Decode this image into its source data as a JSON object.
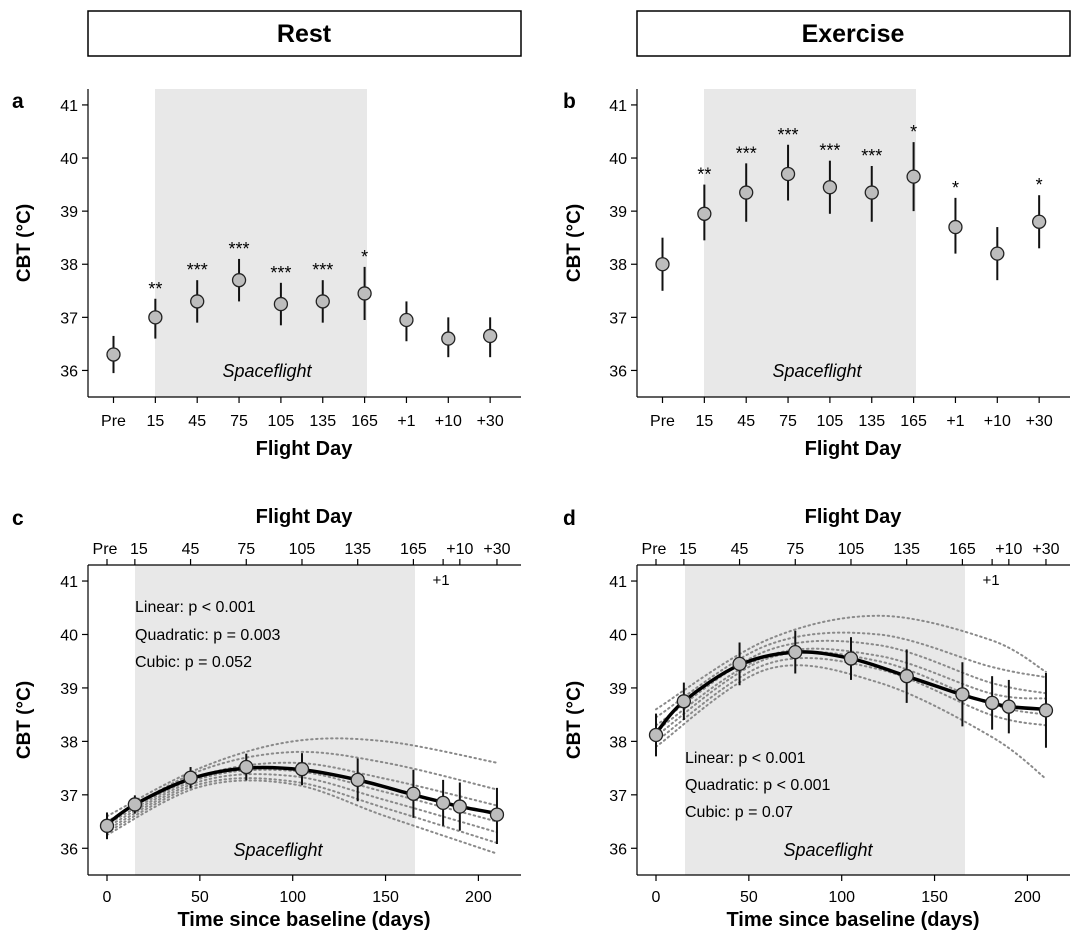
{
  "headers": {
    "rest": "Rest",
    "exercise": "Exercise"
  },
  "panel_labels": {
    "a": "a",
    "b": "b",
    "c": "c",
    "d": "d"
  },
  "shared": {
    "ylabel": "CBT (°C)",
    "xlabel_top": "Flight Day",
    "xlabel_time": "Time since baseline (days)",
    "shade_label": "Spaceflight",
    "day_labels": [
      "Pre",
      "15",
      "45",
      "75",
      "105",
      "135",
      "165",
      "+1",
      "+10",
      "+30"
    ],
    "top_axis_labels": [
      "Pre",
      "15",
      "45",
      "75",
      "105",
      "135",
      "165",
      "+10",
      "+30"
    ],
    "plus1_label": "+1"
  },
  "chart_data": [
    {
      "panel": "a",
      "type": "scatter",
      "title": "Rest",
      "xlabel": "Flight Day",
      "ylabel": "CBT (°C)",
      "categories": [
        "Pre",
        "15",
        "45",
        "75",
        "105",
        "135",
        "165",
        "+1",
        "+10",
        "+30"
      ],
      "means": [
        36.3,
        37.0,
        37.3,
        37.7,
        37.25,
        37.3,
        37.45,
        36.95,
        36.6,
        36.65
      ],
      "lower": [
        35.95,
        36.6,
        36.9,
        37.3,
        36.85,
        36.9,
        36.95,
        36.55,
        36.25,
        36.25
      ],
      "upper": [
        36.65,
        37.35,
        37.7,
        38.1,
        37.65,
        37.7,
        37.95,
        37.3,
        37.0,
        37.0
      ],
      "significance": [
        "",
        "**",
        "***",
        "***",
        "***",
        "***",
        "*",
        "",
        "",
        ""
      ],
      "ylim": [
        35.5,
        41.3
      ],
      "yticks": [
        36,
        37,
        38,
        39,
        40,
        41
      ],
      "shaded_span": [
        "15",
        "165"
      ],
      "shaded_label": "Spaceflight"
    },
    {
      "panel": "b",
      "type": "scatter",
      "title": "Exercise",
      "xlabel": "Flight Day",
      "ylabel": "CBT (°C)",
      "categories": [
        "Pre",
        "15",
        "45",
        "75",
        "105",
        "135",
        "165",
        "+1",
        "+10",
        "+30"
      ],
      "means": [
        38.0,
        38.95,
        39.35,
        39.7,
        39.45,
        39.35,
        39.65,
        38.7,
        38.2,
        38.8
      ],
      "lower": [
        37.5,
        38.45,
        38.8,
        39.2,
        38.95,
        38.8,
        39.0,
        38.2,
        37.7,
        38.3
      ],
      "upper": [
        38.5,
        39.5,
        39.9,
        40.25,
        39.95,
        39.85,
        40.3,
        39.25,
        38.7,
        39.3
      ],
      "significance": [
        "",
        "**",
        "***",
        "***",
        "***",
        "***",
        "*",
        "*",
        "",
        "*"
      ],
      "ylim": [
        35.5,
        41.3
      ],
      "yticks": [
        36,
        37,
        38,
        39,
        40,
        41
      ],
      "shaded_span": [
        "15",
        "165"
      ],
      "shaded_label": "Spaceflight"
    },
    {
      "panel": "c",
      "type": "line",
      "title": "Flight Day",
      "xlabel": "Time since baseline (days)",
      "ylabel": "CBT (°C)",
      "x": [
        0,
        15,
        45,
        75,
        105,
        135,
        165,
        181,
        190,
        210
      ],
      "means": [
        36.42,
        36.82,
        37.32,
        37.52,
        37.48,
        37.28,
        37.02,
        36.85,
        36.78,
        36.63
      ],
      "lower": [
        36.17,
        36.65,
        37.12,
        37.27,
        37.18,
        36.88,
        36.57,
        36.42,
        36.33,
        36.08
      ],
      "upper": [
        36.67,
        36.99,
        37.52,
        37.77,
        37.78,
        37.68,
        37.47,
        37.28,
        37.23,
        37.13
      ],
      "fit": {
        "x": [
          0,
          15,
          45,
          75,
          105,
          135,
          165,
          181,
          190,
          210
        ],
        "y": [
          36.45,
          36.82,
          37.3,
          37.5,
          37.47,
          37.28,
          37.0,
          36.86,
          36.78,
          36.65
        ]
      },
      "individual_curves": [
        {
          "x": [
            0,
            50,
            100,
            150,
            210
          ],
          "y": [
            36.6,
            37.5,
            38.0,
            38.0,
            37.6
          ]
        },
        {
          "x": [
            0,
            50,
            100,
            150,
            210
          ],
          "y": [
            36.5,
            37.45,
            37.8,
            37.6,
            37.1
          ]
        },
        {
          "x": [
            0,
            50,
            100,
            150,
            210
          ],
          "y": [
            36.45,
            37.35,
            37.6,
            37.3,
            36.8
          ]
        },
        {
          "x": [
            0,
            50,
            100,
            150,
            210
          ],
          "y": [
            36.4,
            37.3,
            37.45,
            37.05,
            36.5
          ]
        },
        {
          "x": [
            0,
            50,
            100,
            150,
            210
          ],
          "y": [
            36.35,
            37.25,
            37.35,
            36.9,
            36.3
          ]
        },
        {
          "x": [
            0,
            50,
            100,
            150,
            210
          ],
          "y": [
            36.3,
            37.2,
            37.25,
            36.75,
            36.1
          ]
        },
        {
          "x": [
            0,
            50,
            100,
            150,
            210
          ],
          "y": [
            36.25,
            37.15,
            37.2,
            36.6,
            35.9
          ]
        }
      ],
      "annotations": [
        "Linear: p < 0.001",
        "Quadratic: p = 0.003",
        "Cubic: p = 0.052"
      ],
      "xlim": [
        -7,
        222
      ],
      "xticks": [
        0,
        50,
        100,
        150,
        200
      ],
      "ylim": [
        35.5,
        41.3
      ],
      "yticks": [
        36,
        37,
        38,
        39,
        40,
        41
      ],
      "top_axis": {
        "positions": [
          0,
          15,
          45,
          75,
          105,
          135,
          165,
          181,
          190,
          210
        ],
        "labels": [
          "Pre",
          "15",
          "45",
          "75",
          "105",
          "135",
          "165",
          "+1",
          "+10",
          "+30"
        ]
      },
      "shaded_range": [
        15,
        165
      ],
      "shaded_label": "Spaceflight"
    },
    {
      "panel": "d",
      "type": "line",
      "title": "Flight Day",
      "xlabel": "Time since baseline (days)",
      "ylabel": "CBT (°C)",
      "x": [
        0,
        15,
        45,
        75,
        105,
        135,
        165,
        181,
        190,
        210
      ],
      "means": [
        38.12,
        38.75,
        39.45,
        39.67,
        39.55,
        39.22,
        38.88,
        38.72,
        38.65,
        38.58
      ],
      "lower": [
        37.72,
        38.4,
        39.05,
        39.27,
        39.15,
        38.72,
        38.28,
        38.22,
        38.15,
        37.88
      ],
      "upper": [
        38.52,
        39.1,
        39.85,
        40.07,
        39.95,
        39.72,
        39.48,
        39.22,
        39.15,
        39.28
      ],
      "fit": {
        "x": [
          0,
          15,
          45,
          75,
          105,
          135,
          165,
          181,
          190,
          210
        ],
        "y": [
          38.15,
          38.75,
          39.43,
          39.67,
          39.55,
          39.22,
          38.87,
          38.72,
          38.65,
          38.6
        ]
      },
      "individual_curves": [
        {
          "x": [
            0,
            60,
            120,
            180,
            210
          ],
          "y": [
            38.6,
            39.9,
            40.35,
            39.9,
            39.3
          ]
        },
        {
          "x": [
            0,
            60,
            120,
            180,
            210
          ],
          "y": [
            38.45,
            39.8,
            40.0,
            39.4,
            39.2
          ]
        },
        {
          "x": [
            0,
            60,
            120,
            180,
            210
          ],
          "y": [
            38.3,
            39.7,
            39.8,
            39.1,
            38.9
          ]
        },
        {
          "x": [
            0,
            60,
            120,
            180,
            210
          ],
          "y": [
            38.2,
            39.6,
            39.6,
            38.9,
            38.8
          ]
        },
        {
          "x": [
            0,
            60,
            120,
            180,
            210
          ],
          "y": [
            38.1,
            39.55,
            39.5,
            38.7,
            38.5
          ]
        },
        {
          "x": [
            0,
            60,
            120,
            180,
            210
          ],
          "y": [
            38.0,
            39.45,
            39.35,
            38.5,
            38.3
          ]
        },
        {
          "x": [
            0,
            60,
            120,
            180,
            210
          ],
          "y": [
            37.9,
            39.35,
            39.1,
            38.1,
            37.3
          ]
        }
      ],
      "annotations": [
        "Linear: p < 0.001",
        "Quadratic: p < 0.001",
        "Cubic: p = 0.07"
      ],
      "xlim": [
        -7,
        222
      ],
      "xticks": [
        0,
        50,
        100,
        150,
        200
      ],
      "ylim": [
        35.5,
        41.3
      ],
      "yticks": [
        36,
        37,
        38,
        39,
        40,
        41
      ],
      "top_axis": {
        "positions": [
          0,
          15,
          45,
          75,
          105,
          135,
          165,
          181,
          190,
          210
        ],
        "labels": [
          "Pre",
          "15",
          "45",
          "75",
          "105",
          "135",
          "165",
          "+1",
          "+10",
          "+30"
        ]
      },
      "shaded_range": [
        15,
        165
      ],
      "shaded_label": "Spaceflight"
    }
  ],
  "colors": {
    "shade": "#e8e8e8",
    "marker_fill": "#bdbdbd",
    "marker_stroke": "#222222",
    "fit_line": "#000000",
    "individual": "#8a8a8a",
    "error_bar": "#111111"
  }
}
